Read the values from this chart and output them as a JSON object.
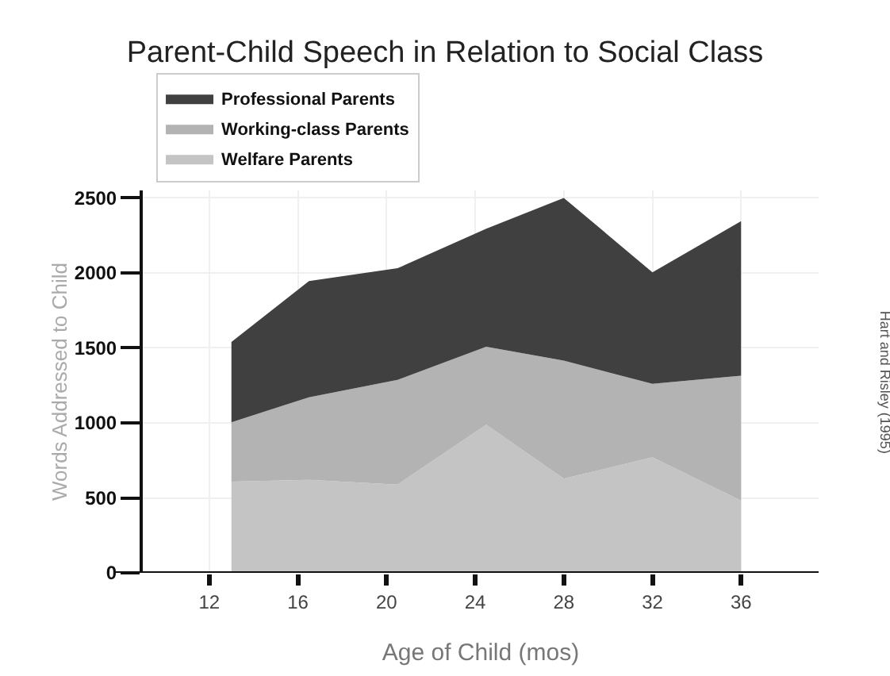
{
  "chart_data": {
    "type": "area",
    "title": "Parent-Child Speech in Relation to Social Class",
    "xlabel": "Age of Child (mos)",
    "ylabel": "Words Addressed to Child",
    "x": [
      13,
      16.5,
      20.5,
      24.5,
      28,
      32,
      36
    ],
    "stacked": true,
    "series": [
      {
        "name": "Welfare Parents",
        "color": "#c4c4c4",
        "values": [
          608,
          620,
          589,
          988,
          628,
          771,
          481
        ]
      },
      {
        "name": "Working-class Parents",
        "color": "#b3b3b3",
        "values": [
          396,
          551,
          698,
          520,
          787,
          489,
          833
        ]
      },
      {
        "name": "Professional Parents",
        "color": "#404040",
        "values": [
          535,
          775,
          744,
          787,
          1085,
          744,
          1031
        ]
      }
    ],
    "xlim": [
      9,
      39.5
    ],
    "xticks": [
      12,
      16,
      20,
      24,
      28,
      32,
      36
    ],
    "ylim": [
      0,
      2550
    ],
    "yticks": [
      0,
      500,
      1000,
      1500,
      2000,
      2500
    ],
    "grid": true,
    "legend": "top left",
    "marker": "none",
    "annotations": [
      "Hart and Risley (1995)"
    ]
  }
}
